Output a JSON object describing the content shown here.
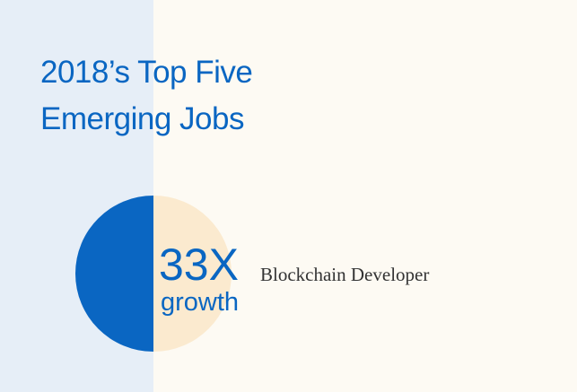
{
  "title": {
    "lines": [
      "2018’s Top Five",
      "Emerging Jobs"
    ]
  },
  "highlight": {
    "stat": "33X",
    "unit": "growth",
    "job": "Blockchain Developer"
  }
}
